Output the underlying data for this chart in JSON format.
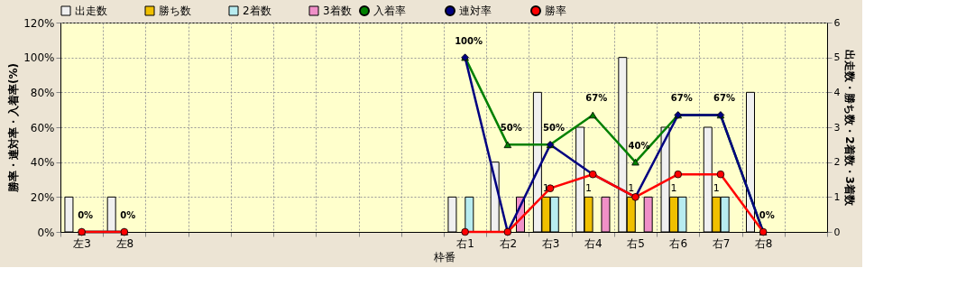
{
  "chart_data": {
    "type": "bar",
    "xlabel": "枠番",
    "ylabel": "勝率・連対率・入着率(%)",
    "y2label": "出走数・勝ち数・2着数・3着数",
    "categories": [
      "左3",
      "左8",
      null,
      null,
      null,
      null,
      null,
      null,
      null,
      "右1",
      "右2",
      "右3",
      "右4",
      "右5",
      "右6",
      "右7",
      "右8",
      null
    ],
    "series": [
      {
        "name": "出走数",
        "color": "#f0f0f0",
        "axis": "y2",
        "values": [
          1,
          1,
          null,
          null,
          null,
          null,
          null,
          null,
          null,
          1,
          2,
          4,
          3,
          5,
          3,
          3,
          4,
          null
        ]
      },
      {
        "name": "勝ち数",
        "color": "#f0c000",
        "axis": "y2",
        "values": [
          null,
          null,
          null,
          null,
          null,
          null,
          null,
          null,
          null,
          null,
          null,
          1,
          1,
          1,
          1,
          1,
          null,
          null
        ],
        "value_labels": [
          null,
          null,
          null,
          null,
          null,
          null,
          null,
          null,
          null,
          null,
          null,
          "1",
          "1",
          "1",
          "1",
          "1",
          null,
          null
        ]
      },
      {
        "name": "2着数",
        "color": "#b8ecf0",
        "axis": "y2",
        "values": [
          null,
          null,
          null,
          null,
          null,
          null,
          null,
          null,
          null,
          1,
          null,
          1,
          null,
          null,
          1,
          1,
          null,
          null
        ]
      },
      {
        "name": "3着数",
        "color": "#f090c8",
        "axis": "y2",
        "values": [
          null,
          null,
          null,
          null,
          null,
          null,
          null,
          null,
          null,
          null,
          1,
          null,
          1,
          1,
          null,
          null,
          null,
          null
        ]
      },
      {
        "name": "入着率",
        "type": "line",
        "color": "#008000",
        "marker": "triangle",
        "values": [
          0,
          0,
          null,
          null,
          null,
          null,
          null,
          null,
          null,
          100,
          50,
          50,
          67,
          40,
          67,
          67,
          0,
          null
        ],
        "value_labels": [
          "0%",
          "0%",
          null,
          null,
          null,
          null,
          null,
          null,
          null,
          "100%",
          "50%",
          "50%",
          "67%",
          "40%",
          "67%",
          "67%",
          "0%",
          null
        ]
      },
      {
        "name": "連対率",
        "type": "line",
        "color": "#000080",
        "marker": "diamond",
        "values": [
          0,
          0,
          null,
          null,
          null,
          null,
          null,
          null,
          null,
          100,
          0,
          50,
          33,
          20,
          67,
          67,
          0,
          null
        ]
      },
      {
        "name": "勝率",
        "type": "line",
        "color": "#ff0000",
        "marker": "circle",
        "values": [
          0,
          0,
          null,
          null,
          null,
          null,
          null,
          null,
          null,
          0,
          0,
          25,
          33,
          20,
          33,
          33,
          0,
          null
        ]
      }
    ],
    "ylim": [
      0,
      120
    ],
    "yticks": [
      {
        "value": 0,
        "label": "0%"
      },
      {
        "value": 20,
        "label": "20%"
      },
      {
        "value": 40,
        "label": "40%"
      },
      {
        "value": 60,
        "label": "60%"
      },
      {
        "value": 80,
        "label": "80%"
      },
      {
        "value": 100,
        "label": "100%"
      },
      {
        "value": 120,
        "label": "120%"
      }
    ],
    "y2lim": [
      0,
      6
    ],
    "y2ticks": [
      0,
      1,
      2,
      3,
      4,
      5,
      6
    ],
    "grid": true,
    "legend": "top"
  }
}
